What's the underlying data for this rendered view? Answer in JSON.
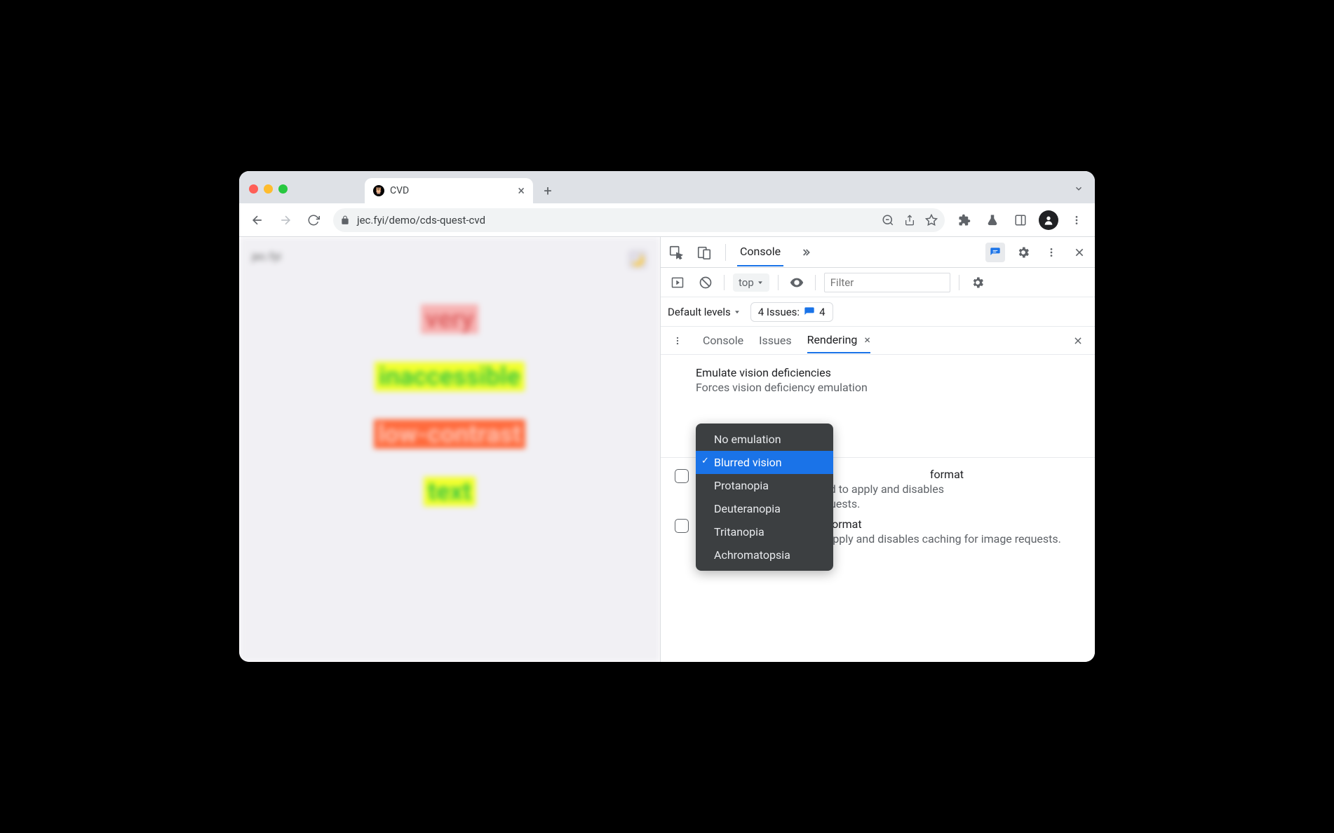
{
  "window": {
    "traffic_colors": [
      "#ff5f57",
      "#febc2e",
      "#28c840"
    ],
    "tab_title": "CVD",
    "url_display": "jec.fyi/demo/cds-quest-cvd"
  },
  "page": {
    "site_label": "jec.fyi",
    "words": [
      {
        "text": "very",
        "bg": "#f7b2b2",
        "fg": "#e06868"
      },
      {
        "text": "inaccessible",
        "bg": "#f2ff2e",
        "fg": "#3fc93f"
      },
      {
        "text": "low-contrast",
        "bg": "#ff6b3d",
        "fg": "#ffc2b0"
      },
      {
        "text": "text",
        "bg": "#f2ff2e",
        "fg": "#3fc93f"
      }
    ]
  },
  "devtools": {
    "top_tab": "Console",
    "sub": {
      "context": "top",
      "filter_placeholder": "Filter"
    },
    "levels_label": "Default levels",
    "issues_label": "4 Issues:",
    "issues_count": "4",
    "drawer": {
      "tabs": [
        "Console",
        "Issues",
        "Rendering"
      ],
      "active": "Rendering"
    },
    "rendering": {
      "section_title": "Emulate vision deficiencies",
      "section_sub": "Forces vision deficiency emulation",
      "dropdown_options": [
        "No emulation",
        "Blurred vision",
        "Protanopia",
        "Deuteranopia",
        "Tritanopia",
        "Achromatopsia"
      ],
      "dropdown_selected": "Blurred vision",
      "cb1_tail": "format",
      "cb1_line2": "ad to apply and disables",
      "cb1_line3": "quests.",
      "cb2_line1_tail": " format",
      "cb2_line2": "Requires a page reload to apply and disables caching for image requests."
    }
  }
}
